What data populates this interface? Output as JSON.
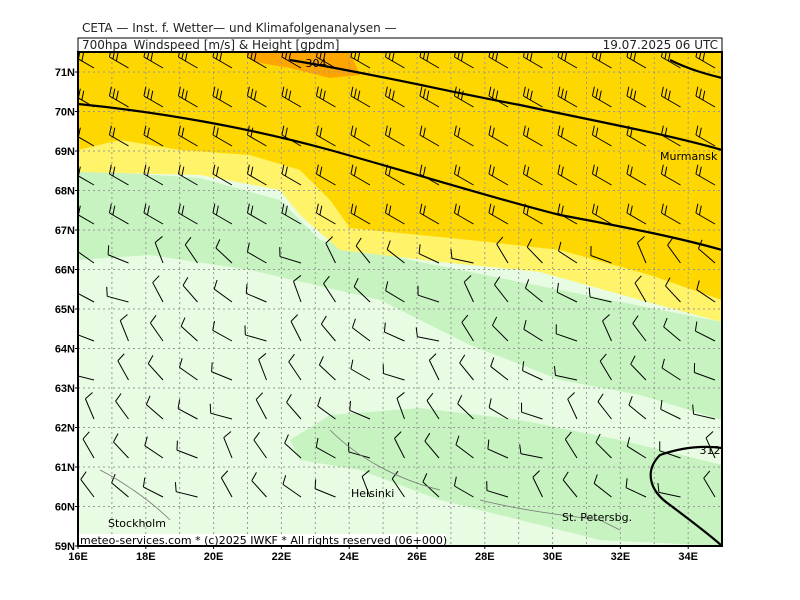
{
  "header": {
    "line1": "CETA — Inst. f. Wetter— und Klimafolgenanalysen —",
    "title": "700hpa_Windspeed [m/s] & Height [gpdm]",
    "datetime": "19.07.2025 06 UTC"
  },
  "map": {
    "lat_labels": [
      "71N",
      "70N",
      "69N",
      "68N",
      "67N",
      "66N",
      "65N",
      "64N",
      "63N",
      "62N",
      "61N",
      "60N",
      "59N"
    ],
    "lon_labels": [
      "16E",
      "18E",
      "20E",
      "22E",
      "24E",
      "26E",
      "28E",
      "30E",
      "32E",
      "34E"
    ],
    "places": [
      "Murmansk",
      "Helsinki",
      "Stockholm",
      "St. Petersbg."
    ],
    "contour_labels": [
      "304",
      "312"
    ],
    "footer": "meteo-services.com * (c)2025 IWKF * All rights reserved (06+000)"
  }
}
